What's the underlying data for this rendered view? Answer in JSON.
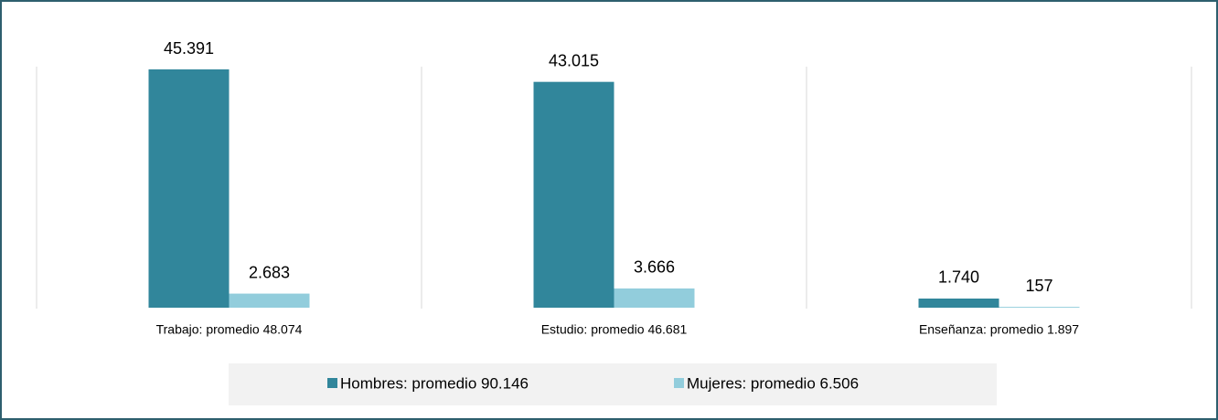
{
  "chart_data": {
    "type": "bar",
    "categories": [
      "Trabajo: promedio 48.074",
      "Estudio: promedio 46.681",
      "Enseñanza: promedio 1.897"
    ],
    "series": [
      {
        "name": "Hombres: promedio 90.146",
        "color": "#31869b",
        "values": [
          45391,
          43015,
          1740
        ],
        "value_labels": [
          "45.391",
          "43.015",
          "1.740"
        ]
      },
      {
        "name": "Mujeres: promedio 6.506",
        "color": "#92cddc",
        "values": [
          2683,
          3666,
          157
        ],
        "value_labels": [
          "2.683",
          "3.666",
          "157"
        ]
      }
    ]
  }
}
